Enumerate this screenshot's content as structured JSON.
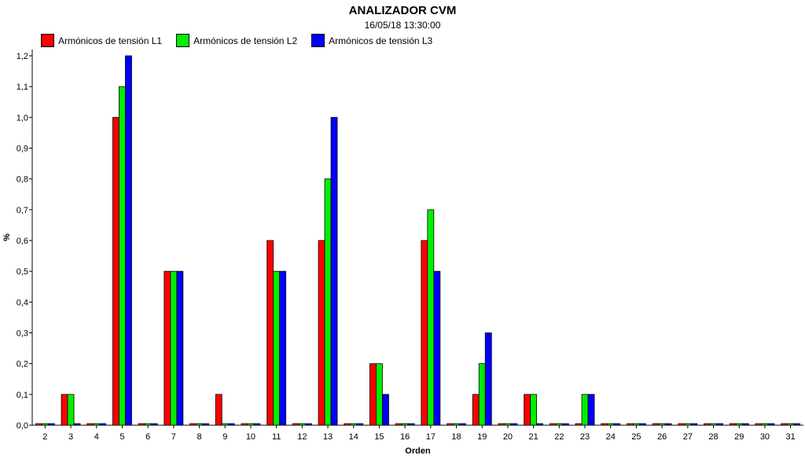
{
  "chart_data": {
    "type": "bar",
    "title": "ANALIZADOR CVM",
    "subtitle": "16/05/18 13:30:00",
    "xlabel": "Orden",
    "ylabel": "%",
    "ylim": [
      0,
      1.2
    ],
    "yticks": [
      "0,0",
      "0,1",
      "0,2",
      "0,3",
      "0,4",
      "0,5",
      "0,6",
      "0,7",
      "0,8",
      "0,9",
      "1,0",
      "1,1",
      "1,2"
    ],
    "legend_position": "top-left",
    "grid": false,
    "categories": [
      "2",
      "3",
      "4",
      "5",
      "6",
      "7",
      "8",
      "9",
      "10",
      "11",
      "12",
      "13",
      "14",
      "15",
      "16",
      "17",
      "18",
      "19",
      "20",
      "21",
      "22",
      "23",
      "24",
      "25",
      "26",
      "27",
      "28",
      "29",
      "30",
      "31"
    ],
    "series": [
      {
        "name": "Armónicos de tensión L1",
        "color": "#ff0000",
        "values": [
          0,
          0.1,
          0,
          1.0,
          0,
          0.5,
          0,
          0.1,
          0,
          0.6,
          0,
          0.6,
          0,
          0.2,
          0,
          0.6,
          0,
          0.1,
          0,
          0.1,
          0,
          0,
          0,
          0,
          0,
          0,
          0,
          0,
          0,
          0
        ]
      },
      {
        "name": "Armónicos de tensión L2",
        "color": "#00ee00",
        "values": [
          0,
          0.1,
          0,
          1.1,
          0,
          0.5,
          0,
          0,
          0,
          0.5,
          0,
          0.8,
          0,
          0.2,
          0,
          0.7,
          0,
          0.2,
          0,
          0.1,
          0,
          0.1,
          0,
          0,
          0,
          0,
          0,
          0,
          0,
          0
        ]
      },
      {
        "name": "Armónicos de tensión L3",
        "color": "#0000ff",
        "values": [
          0,
          0,
          0,
          1.2,
          0,
          0.5,
          0,
          0,
          0,
          0.5,
          0,
          1.0,
          0,
          0.1,
          0,
          0.5,
          0,
          0.3,
          0,
          0,
          0,
          0.1,
          0,
          0,
          0,
          0,
          0,
          0,
          0,
          0
        ]
      }
    ]
  }
}
